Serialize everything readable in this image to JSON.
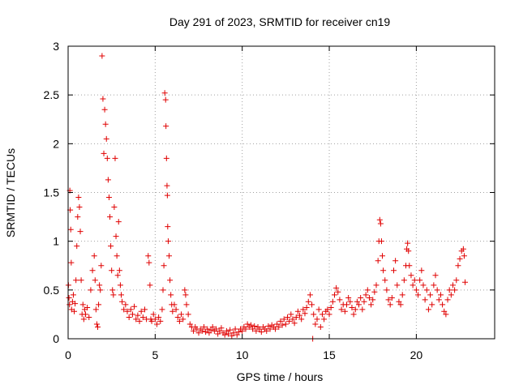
{
  "chart_data": {
    "type": "scatter",
    "title": "Day 291 of 2023, SRMTID for receiver cn19",
    "xlabel": "GPS time / hours",
    "ylabel": "SRMTID / TECUs",
    "xlim": [
      0,
      24.5
    ],
    "ylim": [
      0,
      3
    ],
    "xticks": [
      "0",
      "5",
      "10",
      "15",
      "20"
    ],
    "xtick_values": [
      0,
      5,
      10,
      15,
      20
    ],
    "yticks": [
      "0",
      "0.5",
      "1",
      "1.5",
      "2",
      "2.5",
      "3"
    ],
    "ytick_values": [
      0,
      0.5,
      1,
      1.5,
      2,
      2.5,
      3
    ],
    "grid": true,
    "marker": "+",
    "color": "#e00000",
    "series": [
      {
        "name": "SRMTID",
        "points": [
          [
            0.02,
            0.55
          ],
          [
            0.05,
            0.42
          ],
          [
            0.08,
            0.35
          ],
          [
            0.1,
            1.52
          ],
          [
            0.12,
            1.32
          ],
          [
            0.15,
            1.12
          ],
          [
            0.18,
            0.78
          ],
          [
            0.2,
            0.3
          ],
          [
            0.25,
            0.38
          ],
          [
            0.3,
            0.45
          ],
          [
            0.35,
            0.28
          ],
          [
            0.4,
            0.36
          ],
          [
            0.45,
            0.6
          ],
          [
            0.5,
            0.95
          ],
          [
            0.55,
            1.25
          ],
          [
            0.6,
            1.45
          ],
          [
            0.65,
            1.35
          ],
          [
            0.7,
            1.1
          ],
          [
            0.75,
            0.6
          ],
          [
            0.8,
            0.25
          ],
          [
            0.85,
            0.35
          ],
          [
            0.9,
            0.2
          ],
          [
            0.95,
            0.3
          ],
          [
            1.0,
            0.25
          ],
          [
            1.1,
            0.32
          ],
          [
            1.2,
            0.22
          ],
          [
            1.3,
            0.5
          ],
          [
            1.4,
            0.7
          ],
          [
            1.5,
            0.85
          ],
          [
            1.55,
            0.6
          ],
          [
            1.6,
            0.3
          ],
          [
            1.65,
            0.15
          ],
          [
            1.7,
            0.12
          ],
          [
            1.75,
            0.35
          ],
          [
            1.8,
            0.55
          ],
          [
            1.85,
            0.5
          ],
          [
            1.9,
            0.75
          ],
          [
            1.95,
            2.9
          ],
          [
            2.0,
            2.46
          ],
          [
            2.05,
            1.9
          ],
          [
            2.1,
            2.35
          ],
          [
            2.15,
            2.2
          ],
          [
            2.2,
            2.05
          ],
          [
            2.25,
            1.85
          ],
          [
            2.3,
            1.63
          ],
          [
            2.35,
            1.45
          ],
          [
            2.4,
            1.25
          ],
          [
            2.45,
            0.95
          ],
          [
            2.5,
            0.7
          ],
          [
            2.55,
            0.5
          ],
          [
            2.6,
            0.45
          ],
          [
            2.65,
            1.35
          ],
          [
            2.7,
            1.85
          ],
          [
            2.75,
            1.05
          ],
          [
            2.8,
            0.85
          ],
          [
            2.85,
            0.65
          ],
          [
            2.9,
            1.2
          ],
          [
            2.95,
            0.7
          ],
          [
            3.0,
            0.55
          ],
          [
            3.05,
            0.45
          ],
          [
            3.1,
            0.38
          ],
          [
            3.2,
            0.3
          ],
          [
            3.3,
            0.35
          ],
          [
            3.4,
            0.28
          ],
          [
            3.5,
            0.22
          ],
          [
            3.6,
            0.3
          ],
          [
            3.7,
            0.25
          ],
          [
            3.8,
            0.33
          ],
          [
            3.9,
            0.2
          ],
          [
            4.0,
            0.24
          ],
          [
            4.1,
            0.18
          ],
          [
            4.2,
            0.28
          ],
          [
            4.3,
            0.22
          ],
          [
            4.4,
            0.3
          ],
          [
            4.5,
            0.2
          ],
          [
            4.6,
            0.85
          ],
          [
            4.65,
            0.78
          ],
          [
            4.7,
            0.55
          ],
          [
            4.75,
            0.2
          ],
          [
            4.8,
            0.18
          ],
          [
            4.9,
            0.25
          ],
          [
            5.0,
            0.2
          ],
          [
            5.1,
            0.15
          ],
          [
            5.2,
            0.22
          ],
          [
            5.3,
            0.18
          ],
          [
            5.4,
            0.3
          ],
          [
            5.45,
            0.5
          ],
          [
            5.5,
            0.75
          ],
          [
            5.55,
            2.52
          ],
          [
            5.6,
            2.45
          ],
          [
            5.62,
            2.18
          ],
          [
            5.65,
            1.85
          ],
          [
            5.68,
            1.57
          ],
          [
            5.7,
            1.47
          ],
          [
            5.72,
            1.15
          ],
          [
            5.75,
            1.0
          ],
          [
            5.8,
            0.85
          ],
          [
            5.85,
            0.6
          ],
          [
            5.9,
            0.45
          ],
          [
            5.95,
            0.35
          ],
          [
            6.0,
            0.28
          ],
          [
            6.1,
            0.35
          ],
          [
            6.2,
            0.3
          ],
          [
            6.3,
            0.22
          ],
          [
            6.4,
            0.18
          ],
          [
            6.5,
            0.25
          ],
          [
            6.6,
            0.2
          ],
          [
            6.7,
            0.5
          ],
          [
            6.75,
            0.45
          ],
          [
            6.8,
            0.35
          ],
          [
            6.9,
            0.25
          ],
          [
            7.0,
            0.15
          ],
          [
            7.1,
            0.12
          ],
          [
            7.2,
            0.08
          ],
          [
            7.3,
            0.12
          ],
          [
            7.4,
            0.1
          ],
          [
            7.5,
            0.06
          ],
          [
            7.6,
            0.1
          ],
          [
            7.7,
            0.08
          ],
          [
            7.8,
            0.12
          ],
          [
            7.9,
            0.07
          ],
          [
            8.0,
            0.1
          ],
          [
            8.1,
            0.06
          ],
          [
            8.2,
            0.09
          ],
          [
            8.3,
            0.12
          ],
          [
            8.4,
            0.08
          ],
          [
            8.5,
            0.1
          ],
          [
            8.6,
            0.05
          ],
          [
            8.7,
            0.08
          ],
          [
            8.8,
            0.11
          ],
          [
            8.9,
            0.06
          ],
          [
            9.0,
            0.04
          ],
          [
            9.1,
            0.08
          ],
          [
            9.2,
            0.05
          ],
          [
            9.3,
            0.09
          ],
          [
            9.4,
            0.03
          ],
          [
            9.5,
            0.06
          ],
          [
            9.6,
            0.1
          ],
          [
            9.7,
            0.04
          ],
          [
            9.8,
            0.07
          ],
          [
            9.9,
            0.1
          ],
          [
            10.0,
            0.08
          ],
          [
            10.1,
            0.12
          ],
          [
            10.2,
            0.1
          ],
          [
            10.3,
            0.15
          ],
          [
            10.4,
            0.12
          ],
          [
            10.5,
            0.14
          ],
          [
            10.6,
            0.1
          ],
          [
            10.7,
            0.13
          ],
          [
            10.8,
            0.08
          ],
          [
            10.9,
            0.12
          ],
          [
            11.0,
            0.1
          ],
          [
            11.1,
            0.07
          ],
          [
            11.2,
            0.12
          ],
          [
            11.3,
            0.1
          ],
          [
            11.4,
            0.08
          ],
          [
            11.5,
            0.13
          ],
          [
            11.6,
            0.1
          ],
          [
            11.7,
            0.14
          ],
          [
            11.8,
            0.12
          ],
          [
            11.9,
            0.1
          ],
          [
            12.0,
            0.15
          ],
          [
            12.1,
            0.12
          ],
          [
            12.2,
            0.18
          ],
          [
            12.3,
            0.14
          ],
          [
            12.4,
            0.2
          ],
          [
            12.5,
            0.15
          ],
          [
            12.6,
            0.22
          ],
          [
            12.7,
            0.18
          ],
          [
            12.8,
            0.25
          ],
          [
            12.9,
            0.2
          ],
          [
            13.0,
            0.16
          ],
          [
            13.1,
            0.22
          ],
          [
            13.2,
            0.28
          ],
          [
            13.3,
            0.24
          ],
          [
            13.4,
            0.2
          ],
          [
            13.5,
            0.3
          ],
          [
            13.6,
            0.26
          ],
          [
            13.7,
            0.32
          ],
          [
            13.8,
            0.38
          ],
          [
            13.9,
            0.45
          ],
          [
            14.0,
            0.35
          ],
          [
            14.05,
            0.0
          ],
          [
            14.1,
            0.25
          ],
          [
            14.2,
            0.15
          ],
          [
            14.3,
            0.2
          ],
          [
            14.4,
            0.3
          ],
          [
            14.5,
            0.12
          ],
          [
            14.6,
            0.25
          ],
          [
            14.7,
            0.2
          ],
          [
            14.8,
            0.28
          ],
          [
            14.9,
            0.3
          ],
          [
            15.0,
            0.25
          ],
          [
            15.1,
            0.32
          ],
          [
            15.2,
            0.38
          ],
          [
            15.3,
            0.45
          ],
          [
            15.4,
            0.52
          ],
          [
            15.5,
            0.48
          ],
          [
            15.6,
            0.4
          ],
          [
            15.7,
            0.3
          ],
          [
            15.8,
            0.35
          ],
          [
            15.9,
            0.28
          ],
          [
            16.0,
            0.35
          ],
          [
            16.1,
            0.42
          ],
          [
            16.2,
            0.38
          ],
          [
            16.3,
            0.32
          ],
          [
            16.4,
            0.25
          ],
          [
            16.5,
            0.3
          ],
          [
            16.6,
            0.38
          ],
          [
            16.7,
            0.35
          ],
          [
            16.8,
            0.42
          ],
          [
            16.9,
            0.3
          ],
          [
            17.0,
            0.38
          ],
          [
            17.1,
            0.45
          ],
          [
            17.2,
            0.5
          ],
          [
            17.3,
            0.42
          ],
          [
            17.4,
            0.35
          ],
          [
            17.5,
            0.4
          ],
          [
            17.6,
            0.48
          ],
          [
            17.7,
            0.55
          ],
          [
            17.8,
            0.8
          ],
          [
            17.85,
            1.0
          ],
          [
            17.9,
            1.22
          ],
          [
            17.95,
            1.18
          ],
          [
            18.0,
            1.0
          ],
          [
            18.05,
            0.85
          ],
          [
            18.1,
            0.7
          ],
          [
            18.2,
            0.6
          ],
          [
            18.3,
            0.5
          ],
          [
            18.4,
            0.4
          ],
          [
            18.5,
            0.35
          ],
          [
            18.6,
            0.42
          ],
          [
            18.7,
            0.7
          ],
          [
            18.8,
            0.8
          ],
          [
            18.9,
            0.55
          ],
          [
            19.0,
            0.38
          ],
          [
            19.1,
            0.35
          ],
          [
            19.2,
            0.45
          ],
          [
            19.3,
            0.6
          ],
          [
            19.4,
            0.75
          ],
          [
            19.45,
            0.92
          ],
          [
            19.5,
            0.98
          ],
          [
            19.55,
            0.9
          ],
          [
            19.6,
            0.75
          ],
          [
            19.7,
            0.65
          ],
          [
            19.8,
            0.55
          ],
          [
            19.9,
            0.6
          ],
          [
            20.0,
            0.5
          ],
          [
            20.1,
            0.45
          ],
          [
            20.2,
            0.6
          ],
          [
            20.3,
            0.7
          ],
          [
            20.4,
            0.55
          ],
          [
            20.5,
            0.4
          ],
          [
            20.6,
            0.5
          ],
          [
            20.7,
            0.3
          ],
          [
            20.8,
            0.45
          ],
          [
            20.9,
            0.35
          ],
          [
            21.0,
            0.55
          ],
          [
            21.1,
            0.65
          ],
          [
            21.2,
            0.5
          ],
          [
            21.3,
            0.4
          ],
          [
            21.4,
            0.45
          ],
          [
            21.5,
            0.35
          ],
          [
            21.6,
            0.28
          ],
          [
            21.7,
            0.25
          ],
          [
            21.8,
            0.4
          ],
          [
            21.9,
            0.5
          ],
          [
            22.0,
            0.45
          ],
          [
            22.1,
            0.55
          ],
          [
            22.2,
            0.5
          ],
          [
            22.3,
            0.6
          ],
          [
            22.4,
            0.75
          ],
          [
            22.5,
            0.82
          ],
          [
            22.6,
            0.9
          ],
          [
            22.7,
            0.92
          ],
          [
            22.75,
            0.85
          ],
          [
            22.8,
            0.58
          ]
        ]
      }
    ]
  }
}
